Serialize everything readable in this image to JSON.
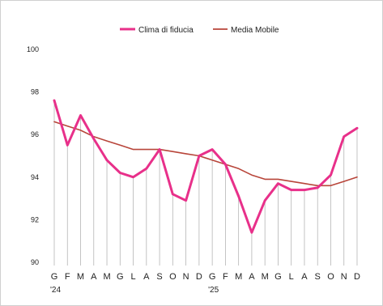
{
  "chart_data": {
    "type": "line",
    "title": "",
    "xlabel": "",
    "ylabel": "",
    "ylim": [
      90,
      100
    ],
    "yticks": [
      90,
      92,
      94,
      96,
      98,
      100
    ],
    "categories": [
      "G",
      "F",
      "M",
      "A",
      "M",
      "G",
      "L",
      "A",
      "S",
      "O",
      "N",
      "D",
      "G",
      "F",
      "M",
      "A",
      "M",
      "G",
      "L",
      "A",
      "S",
      "O",
      "N",
      "D"
    ],
    "year_labels": [
      {
        "index": 0,
        "label": "'24"
      },
      {
        "index": 12,
        "label": "'25"
      }
    ],
    "legend_position": "top-center",
    "grid": false,
    "series": [
      {
        "name": "Clima di fiducia",
        "color": "#e8308a",
        "values": [
          97.6,
          95.5,
          96.9,
          95.8,
          94.8,
          94.2,
          94.0,
          94.4,
          95.3,
          93.2,
          92.9,
          95.0,
          95.3,
          94.6,
          93.1,
          91.4,
          92.9,
          93.7,
          93.4,
          93.4,
          93.5,
          94.1,
          95.9,
          96.3
        ]
      },
      {
        "name": "Media Mobile",
        "color": "#b8453a",
        "values": [
          96.6,
          96.4,
          96.2,
          95.9,
          95.7,
          95.5,
          95.3,
          95.3,
          95.3,
          95.2,
          95.1,
          95.0,
          94.8,
          94.6,
          94.4,
          94.1,
          93.9,
          93.9,
          93.8,
          93.7,
          93.6,
          93.6,
          93.8,
          94.0
        ]
      }
    ]
  }
}
